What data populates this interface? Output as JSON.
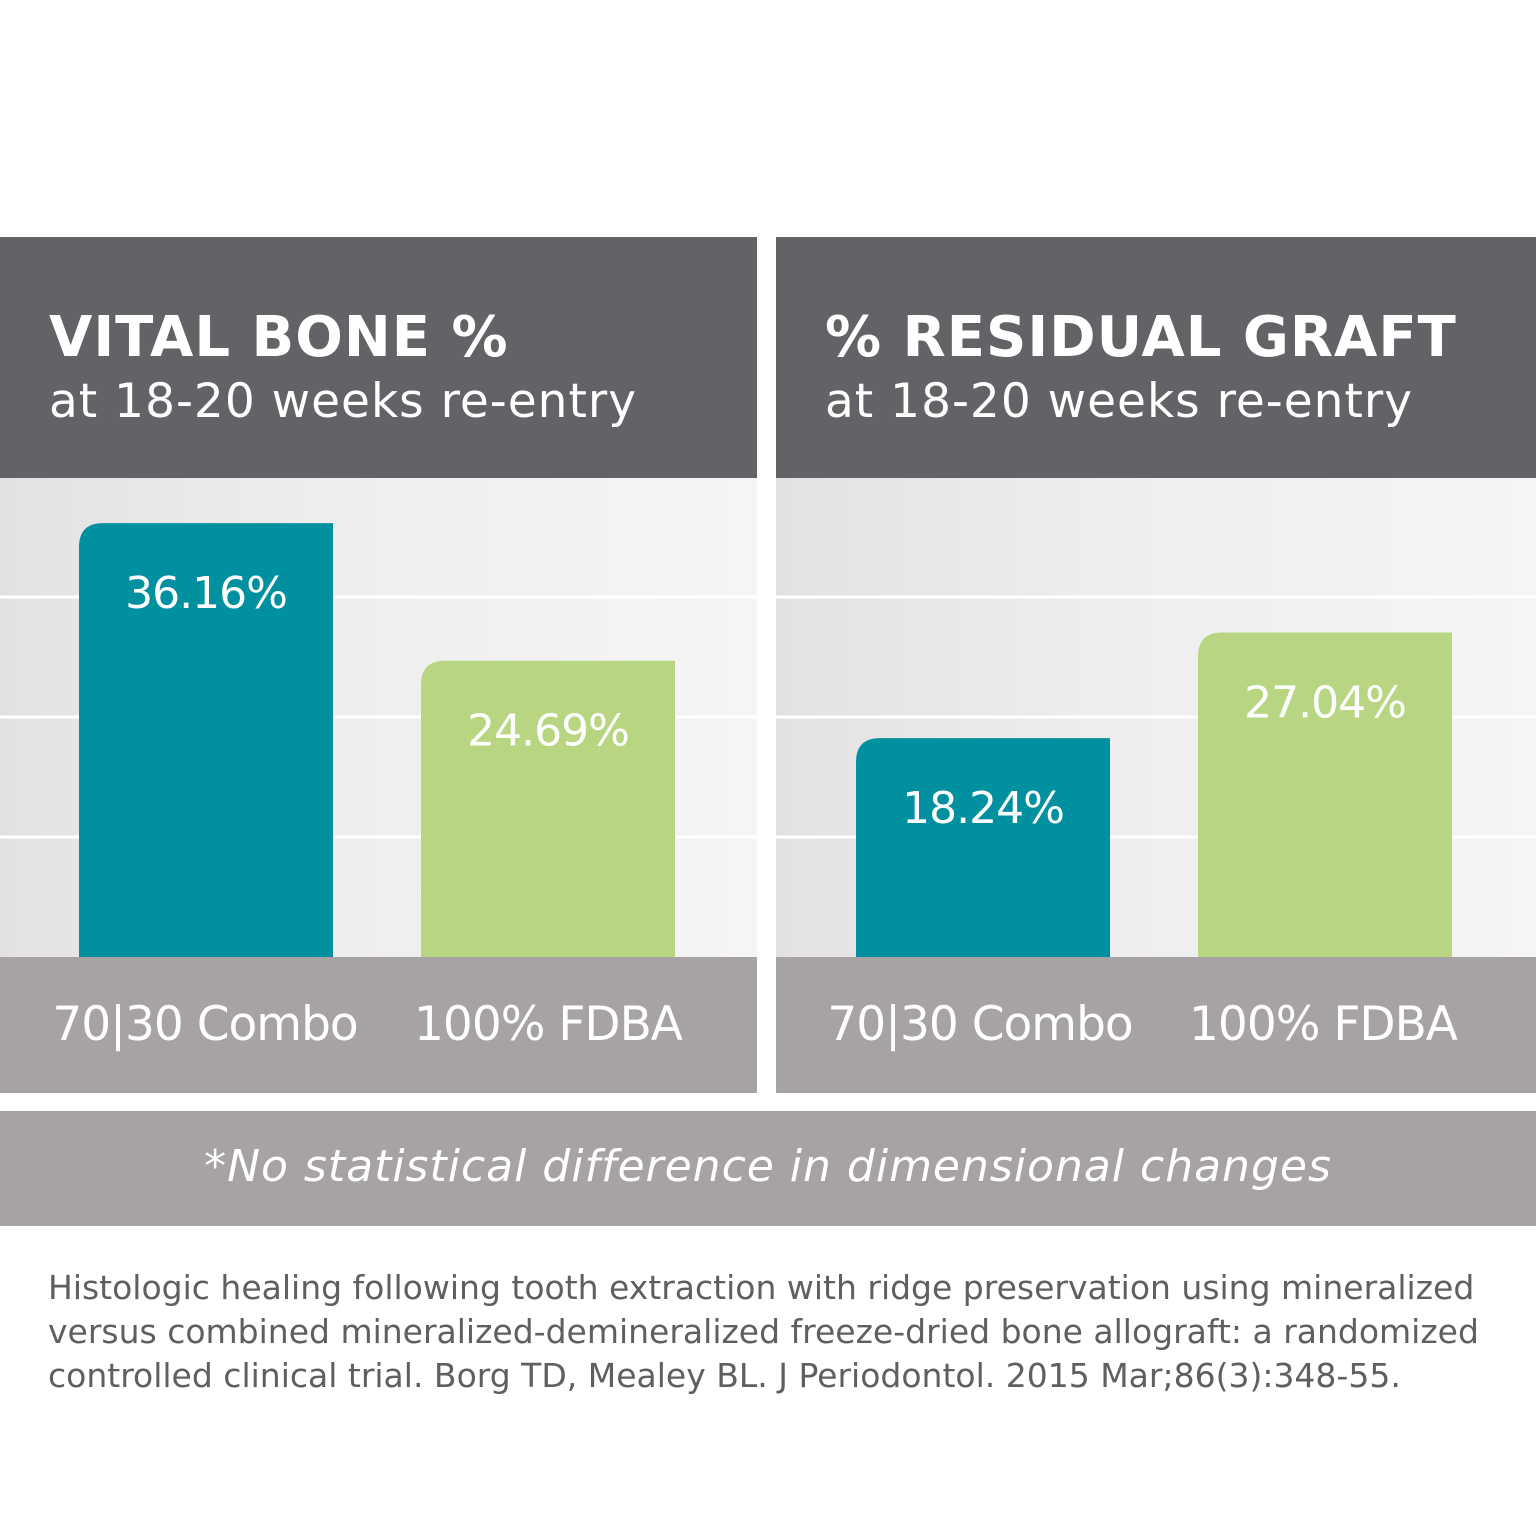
{
  "footnote": "*No statistical difference in dimensional changes",
  "citation": "Histologic healing following tooth extraction with ridge preservation using mineralized versus combined mineralized-demineralized freeze-dried bone allograft: a randomized controlled clinical trial. Borg TD, Mealey BL. J Periodontol. 2015 Mar;86(3):348-55.",
  "colors": {
    "combo": "#00909f",
    "fdba": "#b8d682",
    "header": "#636266",
    "band": "#a7a3a4"
  },
  "chart_data": [
    {
      "type": "bar",
      "title": "VITAL BONE %",
      "subtitle": "at 18-20 weeks re-entry",
      "categories": [
        "70|30 Combo",
        "100% FDBA"
      ],
      "values": [
        36.16,
        24.69
      ],
      "value_labels": [
        "36.16%",
        "24.69%"
      ],
      "ylim": [
        0,
        40
      ],
      "grid": true,
      "colors": [
        "#00909f",
        "#b8d682"
      ]
    },
    {
      "type": "bar",
      "title": "% RESIDUAL GRAFT",
      "subtitle": "at 18-20 weeks re-entry",
      "categories": [
        "70|30 Combo",
        "100% FDBA"
      ],
      "values": [
        18.24,
        27.04
      ],
      "value_labels": [
        "18.24%",
        "27.04%"
      ],
      "ylim": [
        0,
        40
      ],
      "grid": true,
      "colors": [
        "#00909f",
        "#b8d682"
      ]
    }
  ]
}
